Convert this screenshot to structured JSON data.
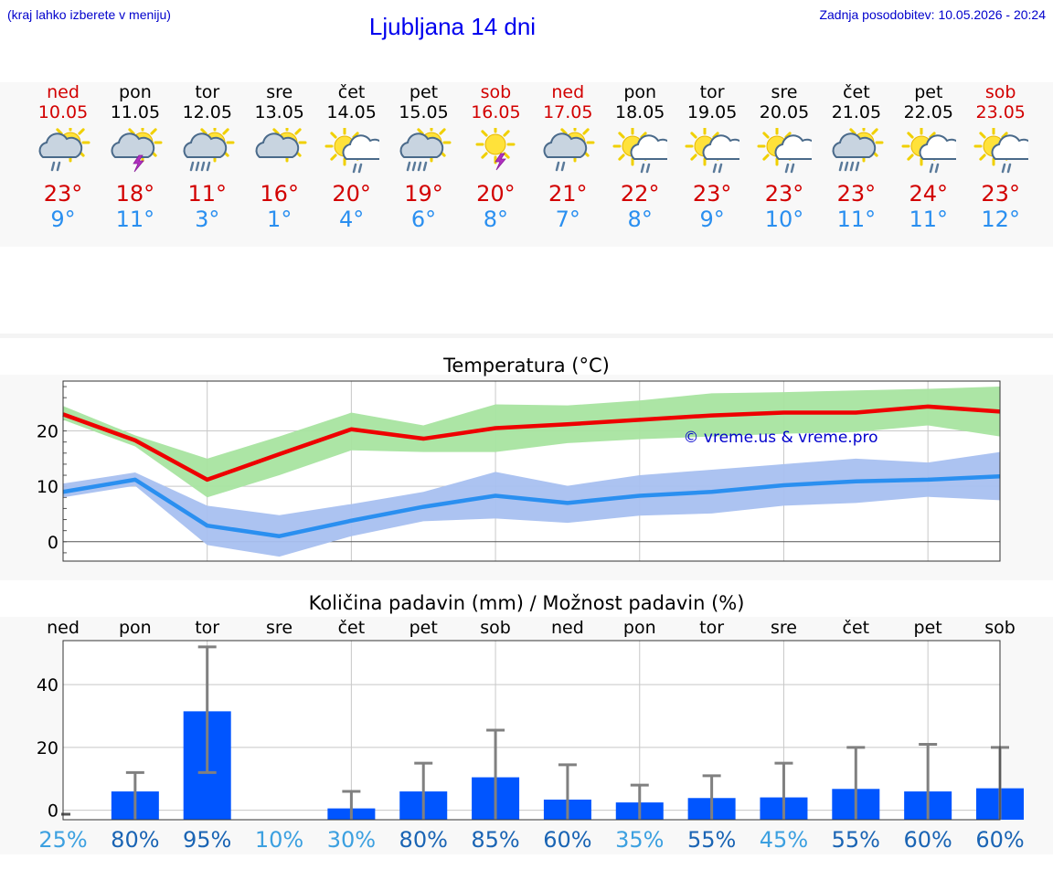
{
  "header": {
    "left_note": "(kraj lahko izberete v meniju)",
    "title": "Ljubljana 14 dni",
    "updated": "Zadnja posodobitev: 10.05.2026 - 20:24"
  },
  "days": [
    {
      "name": "ned",
      "date": "10.05",
      "weekend": true,
      "icon": "sun-cloud-rain-icon",
      "tmax": "23°",
      "tmin": "9°"
    },
    {
      "name": "pon",
      "date": "11.05",
      "weekend": false,
      "icon": "sun-cloud-thunder-icon",
      "tmax": "18°",
      "tmin": "11°"
    },
    {
      "name": "tor",
      "date": "12.05",
      "weekend": false,
      "icon": "sun-cloud-heavy-rain-icon",
      "tmax": "11°",
      "tmin": "3°"
    },
    {
      "name": "sre",
      "date": "13.05",
      "weekend": false,
      "icon": "sun-cloud-icon",
      "tmax": "16°",
      "tmin": "1°"
    },
    {
      "name": "čet",
      "date": "14.05",
      "weekend": false,
      "icon": "sun-white-cloud-rain-icon",
      "tmax": "20°",
      "tmin": "4°"
    },
    {
      "name": "pet",
      "date": "15.05",
      "weekend": false,
      "icon": "sun-cloud-heavy-rain-icon",
      "tmax": "19°",
      "tmin": "6°"
    },
    {
      "name": "sob",
      "date": "16.05",
      "weekend": true,
      "icon": "sun-thunder-icon",
      "tmax": "20°",
      "tmin": "8°"
    },
    {
      "name": "ned",
      "date": "17.05",
      "weekend": true,
      "icon": "sun-cloud-rain-icon",
      "tmax": "21°",
      "tmin": "7°"
    },
    {
      "name": "pon",
      "date": "18.05",
      "weekend": false,
      "icon": "sun-white-cloud-rain-icon",
      "tmax": "22°",
      "tmin": "8°"
    },
    {
      "name": "tor",
      "date": "19.05",
      "weekend": false,
      "icon": "sun-white-cloud-rain-icon",
      "tmax": "23°",
      "tmin": "9°"
    },
    {
      "name": "sre",
      "date": "20.05",
      "weekend": false,
      "icon": "sun-white-cloud-rain-icon",
      "tmax": "23°",
      "tmin": "10°"
    },
    {
      "name": "čet",
      "date": "21.05",
      "weekend": false,
      "icon": "sun-cloud-heavy-rain-icon",
      "tmax": "23°",
      "tmin": "11°"
    },
    {
      "name": "pet",
      "date": "22.05",
      "weekend": false,
      "icon": "sun-white-cloud-rain-icon",
      "tmax": "24°",
      "tmin": "11°"
    },
    {
      "name": "sob",
      "date": "23.05",
      "weekend": true,
      "icon": "sun-white-cloud-rain-icon",
      "tmax": "23°",
      "tmin": "12°"
    }
  ],
  "colors": {
    "max": "#ee0000",
    "max_band": "#a8e4a0",
    "min": "#2a8ff0",
    "min_band": "#a8c0f0",
    "bar": "#0055ff",
    "err": "#808080",
    "pct_dark": "#1a64b4",
    "pct_light": "#3ca0e0"
  },
  "chart_data": [
    {
      "type": "line",
      "title": "Temperatura (°C)",
      "watermark": "© vreme.us & vreme.pro",
      "ylim": [
        -3.5,
        29
      ],
      "yticks": [
        0,
        10,
        20
      ],
      "grid": true,
      "x": [
        "10.05",
        "11.05",
        "12.05",
        "13.05",
        "14.05",
        "15.05",
        "16.05",
        "17.05",
        "18.05",
        "19.05",
        "20.05",
        "21.05",
        "22.05",
        "23.05"
      ],
      "series": [
        {
          "values": [
            23,
            18.3,
            11.2,
            15.8,
            20.3,
            18.6,
            20.5,
            21.2,
            22,
            22.8,
            23.3,
            23.3,
            24.4,
            23.5
          ],
          "band_upper": [
            24.5,
            19.2,
            15,
            19,
            23.3,
            21,
            24.8,
            24.6,
            25.5,
            26.8,
            27,
            27.3,
            27.6,
            28
          ],
          "band_lower": [
            22,
            17.2,
            8,
            12,
            16.5,
            16.2,
            16.2,
            17.8,
            18.5,
            19,
            19.5,
            19.8,
            21,
            19
          ]
        },
        {
          "values": [
            9,
            11.2,
            2.9,
            1,
            3.8,
            6.3,
            8.3,
            7,
            8.3,
            9,
            10.2,
            10.9,
            11.2,
            11.8
          ],
          "band_upper": [
            10.5,
            12.5,
            6.5,
            4.8,
            6.8,
            9,
            12.6,
            10.1,
            12,
            13,
            14,
            15,
            14.3,
            16.2
          ],
          "band_lower": [
            8,
            10.1,
            -0.6,
            -2.7,
            1,
            3.7,
            4.2,
            3.4,
            4.7,
            5.1,
            6.5,
            7,
            8.1,
            7.5
          ]
        }
      ]
    },
    {
      "type": "bar",
      "title": "Količina padavin (mm) / Možnost padavin (%)",
      "ylim": [
        -3,
        54
      ],
      "yticks": [
        0,
        20,
        40
      ],
      "grid": true,
      "categories": [
        "ned",
        "pon",
        "tor",
        "sre",
        "čet",
        "pet",
        "sob",
        "ned",
        "pon",
        "tor",
        "sre",
        "čet",
        "pet",
        "sob"
      ],
      "values": [
        0,
        6,
        31.5,
        0,
        0.6,
        6,
        10.5,
        3.4,
        2.5,
        3.9,
        4.1,
        6.8,
        6,
        7
      ],
      "error_high": [
        0,
        12,
        52,
        0,
        6,
        15,
        25.5,
        14.5,
        8,
        11,
        15,
        20,
        21,
        20
      ],
      "error_low": [
        0,
        0,
        12,
        0,
        0,
        0,
        0,
        0,
        0,
        0,
        0,
        0,
        0,
        0
      ],
      "probability": [
        "25%",
        "80%",
        "95%",
        "10%",
        "30%",
        "80%",
        "85%",
        "60%",
        "35%",
        "55%",
        "45%",
        "55%",
        "60%",
        "60%"
      ]
    }
  ]
}
